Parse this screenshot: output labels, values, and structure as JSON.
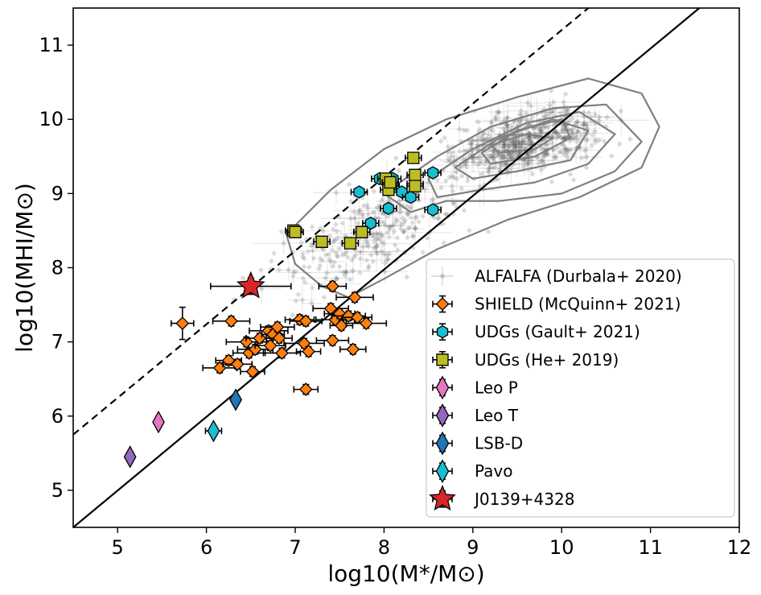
{
  "chart_data": {
    "type": "scatter",
    "xlabel": "log10(M*/M⊙)",
    "ylabel": "log10(MHI/M⊙)",
    "xlim": [
      4.5,
      12
    ],
    "ylim": [
      4.5,
      11.5
    ],
    "xticks": [
      "5",
      "6",
      "7",
      "8",
      "9",
      "10",
      "11",
      "12"
    ],
    "yticks": [
      "5",
      "6",
      "7",
      "8",
      "9",
      "10",
      "11"
    ],
    "grid": false,
    "legend_position": "lower-right",
    "reference_lines": [
      {
        "style": "solid",
        "points": [
          [
            4.5,
            4.5
          ],
          [
            11.55,
            11.5
          ]
        ]
      },
      {
        "style": "dashed",
        "points": [
          [
            4.5,
            5.75
          ],
          [
            10.3,
            11.5
          ]
        ]
      }
    ],
    "series": [
      {
        "name": "ALFALFA (Durbala+ 2020)",
        "marker": "diamond",
        "color": "#7f7f7f",
        "contours_x": [
          [
            6.9,
            7.4,
            8.0,
            8.7,
            9.5,
            10.3,
            10.9,
            11.1,
            10.9,
            10.2,
            9.4,
            8.6,
            8.0,
            7.6,
            7.3,
            7.0,
            6.9
          ],
          [
            8.0,
            8.6,
            9.2,
            9.9,
            10.5,
            10.9,
            10.6,
            10.0,
            9.3,
            8.7,
            8.3,
            8.0
          ],
          [
            8.5,
            9.0,
            9.6,
            10.2,
            10.6,
            10.3,
            9.7,
            9.1,
            8.6,
            8.5
          ],
          [
            8.8,
            9.3,
            9.9,
            10.3,
            10.1,
            9.5,
            9.0,
            8.8
          ],
          [
            9.1,
            9.5,
            10.0,
            10.1,
            9.7,
            9.2,
            9.1
          ],
          [
            9.2,
            9.6,
            9.9,
            9.7,
            9.3,
            9.2
          ]
        ],
        "contours_y": [
          [
            8.45,
            9.05,
            9.6,
            10.0,
            10.3,
            10.55,
            10.35,
            9.9,
            9.35,
            8.95,
            8.65,
            8.25,
            7.85,
            7.6,
            7.75,
            8.05,
            8.45
          ],
          [
            9.0,
            9.5,
            9.9,
            10.15,
            10.2,
            9.7,
            9.3,
            9.0,
            8.9,
            8.9,
            8.75,
            9.0
          ],
          [
            9.2,
            9.6,
            9.95,
            10.1,
            9.8,
            9.4,
            9.15,
            9.05,
            8.95,
            9.2
          ],
          [
            9.35,
            9.75,
            10.0,
            9.85,
            9.45,
            9.3,
            9.2,
            9.35
          ],
          [
            9.55,
            9.85,
            10.0,
            9.75,
            9.5,
            9.4,
            9.55
          ],
          [
            9.65,
            9.8,
            9.75,
            9.6,
            9.55,
            9.65
          ]
        ]
      },
      {
        "name": "SHIELD (McQuinn+ 2021)",
        "marker": "diamond",
        "color": "#ff7f0e",
        "x": [
          5.73,
          6.15,
          6.25,
          6.28,
          6.35,
          6.45,
          6.48,
          6.52,
          6.55,
          6.6,
          6.7,
          6.72,
          6.75,
          6.8,
          6.82,
          6.85,
          7.05,
          7.1,
          7.12,
          7.15,
          7.4,
          7.42,
          7.45,
          7.5,
          7.52,
          7.6,
          7.65,
          7.67,
          7.7,
          7.8,
          7.42,
          7.12
        ],
        "y": [
          7.25,
          6.65,
          6.75,
          7.28,
          6.7,
          7.0,
          6.85,
          6.6,
          6.9,
          7.05,
          7.15,
          6.95,
          7.1,
          7.2,
          7.05,
          6.85,
          7.3,
          6.98,
          7.28,
          6.87,
          7.45,
          7.75,
          7.3,
          7.38,
          7.22,
          7.35,
          6.9,
          7.6,
          7.33,
          7.25,
          7.02,
          6.36
        ]
      },
      {
        "name": "UDGs (Gault+ 2021)",
        "marker": "hexagon",
        "color": "#17becf",
        "x": [
          7.72,
          7.85,
          7.95,
          8.05,
          8.08,
          8.2,
          8.3,
          8.35,
          8.55,
          8.55,
          8.1
        ],
        "y": [
          9.02,
          8.6,
          9.2,
          8.8,
          9.1,
          9.02,
          8.95,
          9.13,
          9.28,
          8.78,
          9.2
        ]
      },
      {
        "name": "UDGs (He+ 2019)",
        "marker": "square",
        "color": "#bcbd22",
        "x": [
          6.98,
          7.0,
          7.3,
          7.62,
          7.75,
          8.02,
          8.05,
          8.07,
          8.33,
          8.35,
          8.35
        ],
        "y": [
          8.5,
          8.48,
          8.35,
          8.33,
          8.48,
          9.2,
          9.05,
          9.15,
          9.48,
          9.25,
          9.1
        ]
      },
      {
        "name": "Leo P",
        "marker": "thin-diamond",
        "color": "#e377c2",
        "x": [
          5.46
        ],
        "y": [
          5.92
        ]
      },
      {
        "name": "Leo T",
        "marker": "thin-diamond",
        "color": "#9467bd",
        "x": [
          5.14
        ],
        "y": [
          5.45
        ]
      },
      {
        "name": "LSB-D",
        "marker": "thin-diamond",
        "color": "#1f77b4",
        "x": [
          6.33
        ],
        "y": [
          6.22
        ]
      },
      {
        "name": "Pavo",
        "marker": "thin-diamond",
        "color": "#17becf",
        "x": [
          6.08
        ],
        "y": [
          5.8
        ]
      },
      {
        "name": "J0139+4328",
        "marker": "star",
        "color": "#d62728",
        "x": [
          6.5
        ],
        "y": [
          7.75
        ]
      }
    ]
  }
}
